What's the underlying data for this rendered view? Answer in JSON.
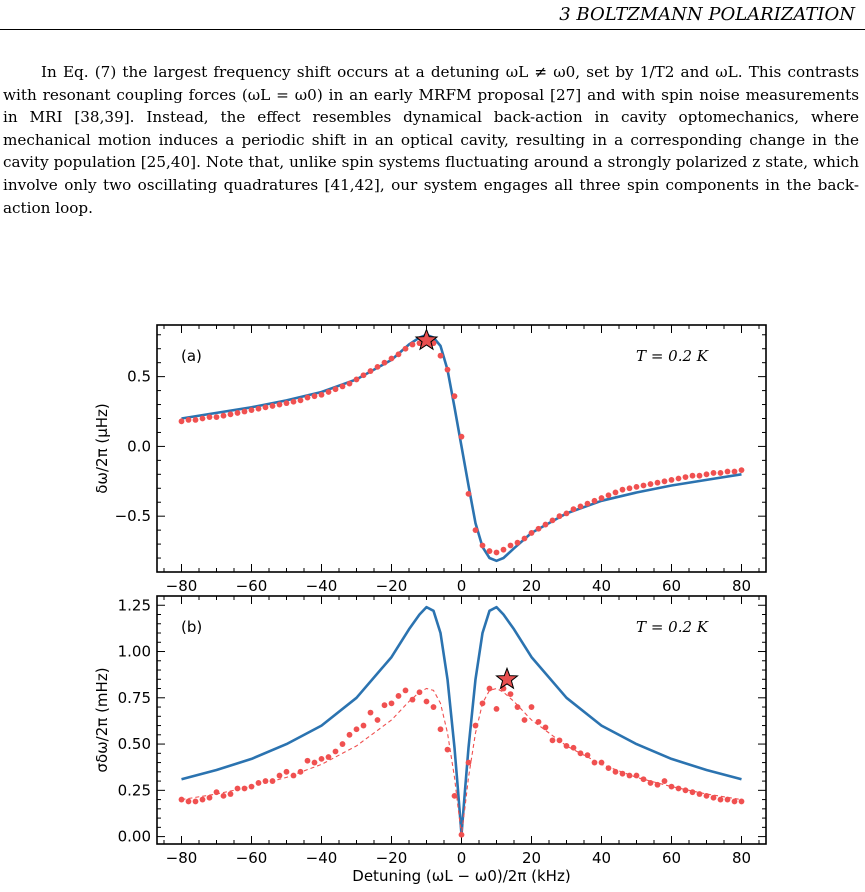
{
  "header": {
    "section": "3  BOLTZMANN POLARIZATION"
  },
  "paragraph": "In Eq. (7) the largest frequency shift occurs at a detuning ωL ≠ ω0, set by 1/T2 and ωL. This contrasts with resonant coupling forces (ωL = ω0) in an early MRFM proposal [27] and with spin noise measurements in MRI [38,39]. Instead, the effect resembles dynamical back-action in cavity optomechanics, where mechanical motion induces a periodic shift in an optical cavity, resulting in a corresponding change in the cavity population [25,40]. Note that, unlike spin systems fluctuating around a strongly polarized z state, which involve only two oscillating quadratures [41,42], our system engages all three spin components in the back-action loop.",
  "colors": {
    "theory": "#2b73b0",
    "data": "#f05050",
    "star": "#e85050"
  },
  "chart_data": [
    {
      "type": "scatter",
      "panel_label": "(a)",
      "annotation": "T = 0.2 K",
      "ylabel": "δω/2π (μHz)",
      "xlim": [
        -87,
        87
      ],
      "ylim": [
        -0.9,
        0.87
      ],
      "xticks": [
        -80,
        -60,
        -40,
        -20,
        0,
        20,
        40,
        60,
        80
      ],
      "yticks": [
        -0.5,
        0.0,
        0.5
      ],
      "ytick_labels": [
        "−0.5",
        "0.0",
        "0.5"
      ],
      "series": [
        {
          "kind": "line",
          "x": [
            -80,
            -70,
            -60,
            -50,
            -40,
            -30,
            -20,
            -15,
            -12,
            -10,
            -8,
            -6,
            -4,
            -2,
            0,
            2,
            4,
            6,
            8,
            10,
            12,
            15,
            20,
            30,
            40,
            50,
            60,
            70,
            80
          ],
          "y": [
            0.2,
            0.24,
            0.28,
            0.33,
            0.39,
            0.48,
            0.62,
            0.73,
            0.78,
            0.8,
            0.78,
            0.72,
            0.55,
            0.28,
            0.0,
            -0.28,
            -0.55,
            -0.72,
            -0.8,
            -0.82,
            -0.8,
            -0.73,
            -0.62,
            -0.48,
            -0.39,
            -0.33,
            -0.28,
            -0.24,
            -0.2
          ]
        },
        {
          "kind": "points",
          "x": [
            -80,
            -78,
            -76,
            -74,
            -72,
            -70,
            -68,
            -66,
            -64,
            -62,
            -60,
            -58,
            -56,
            -54,
            -52,
            -50,
            -48,
            -46,
            -44,
            -42,
            -40,
            -38,
            -36,
            -34,
            -32,
            -30,
            -28,
            -26,
            -24,
            -22,
            -20,
            -18,
            -16,
            -14,
            -12,
            -10,
            -8,
            -6,
            -4,
            -2,
            0,
            2,
            4,
            6,
            8,
            10,
            12,
            14,
            16,
            18,
            20,
            22,
            24,
            26,
            28,
            30,
            32,
            34,
            36,
            38,
            40,
            42,
            44,
            46,
            48,
            50,
            52,
            54,
            56,
            58,
            60,
            62,
            64,
            66,
            68,
            70,
            72,
            74,
            76,
            78,
            80
          ],
          "y": [
            0.18,
            0.19,
            0.19,
            0.2,
            0.21,
            0.21,
            0.22,
            0.23,
            0.24,
            0.25,
            0.26,
            0.27,
            0.28,
            0.29,
            0.3,
            0.31,
            0.32,
            0.33,
            0.35,
            0.36,
            0.37,
            0.39,
            0.41,
            0.43,
            0.45,
            0.48,
            0.51,
            0.54,
            0.57,
            0.6,
            0.63,
            0.66,
            0.7,
            0.73,
            0.74,
            0.76,
            0.74,
            0.65,
            0.55,
            0.36,
            0.07,
            -0.34,
            -0.6,
            -0.71,
            -0.75,
            -0.76,
            -0.74,
            -0.71,
            -0.69,
            -0.66,
            -0.62,
            -0.59,
            -0.56,
            -0.53,
            -0.5,
            -0.48,
            -0.45,
            -0.43,
            -0.41,
            -0.39,
            -0.37,
            -0.35,
            -0.33,
            -0.31,
            -0.3,
            -0.29,
            -0.28,
            -0.27,
            -0.26,
            -0.25,
            -0.24,
            -0.23,
            -0.22,
            -0.21,
            -0.21,
            -0.2,
            -0.19,
            -0.19,
            -0.18,
            -0.18,
            -0.17
          ]
        },
        {
          "kind": "star",
          "x": -10,
          "y": 0.76
        }
      ]
    },
    {
      "type": "scatter",
      "panel_label": "(b)",
      "annotation": "T = 0.2 K",
      "xlabel": "Detuning (ωL − ω0)/2π (kHz)",
      "ylabel": "σδω/2π (mHz)",
      "xlim": [
        -87,
        87
      ],
      "ylim": [
        -0.04,
        1.3
      ],
      "xticks": [
        -80,
        -60,
        -40,
        -20,
        0,
        20,
        40,
        60,
        80
      ],
      "yticks": [
        0.0,
        0.25,
        0.5,
        0.75,
        1.0,
        1.25
      ],
      "ytick_labels": [
        "0.00",
        "0.25",
        "0.50",
        "0.75",
        "1.00",
        "1.25"
      ],
      "series": [
        {
          "kind": "line",
          "x": [
            -80,
            -70,
            -60,
            -50,
            -40,
            -30,
            -20,
            -15,
            -12,
            -10,
            -8,
            -6,
            -4,
            -2,
            -1,
            0,
            1,
            2,
            4,
            6,
            8,
            10,
            12,
            15,
            20,
            30,
            40,
            50,
            60,
            70,
            80
          ],
          "y": [
            0.31,
            0.36,
            0.42,
            0.5,
            0.6,
            0.75,
            0.97,
            1.12,
            1.2,
            1.24,
            1.22,
            1.1,
            0.85,
            0.48,
            0.25,
            0.01,
            0.25,
            0.48,
            0.85,
            1.1,
            1.22,
            1.24,
            1.2,
            1.12,
            0.97,
            0.75,
            0.6,
            0.5,
            0.42,
            0.36,
            0.31
          ]
        },
        {
          "kind": "dashed",
          "x": [
            -80,
            -70,
            -60,
            -50,
            -40,
            -30,
            -20,
            -15,
            -12,
            -10,
            -8,
            -6,
            -4,
            -2,
            -1,
            0,
            1,
            2,
            4,
            6,
            8,
            10,
            12,
            15,
            20,
            30,
            40,
            50,
            60,
            70,
            80
          ],
          "y": [
            0.2,
            0.23,
            0.27,
            0.32,
            0.39,
            0.49,
            0.63,
            0.73,
            0.78,
            0.8,
            0.79,
            0.72,
            0.56,
            0.32,
            0.16,
            0.01,
            0.16,
            0.32,
            0.56,
            0.72,
            0.79,
            0.8,
            0.78,
            0.73,
            0.63,
            0.49,
            0.39,
            0.32,
            0.27,
            0.23,
            0.2
          ]
        },
        {
          "kind": "points",
          "x": [
            -80,
            -78,
            -76,
            -74,
            -72,
            -70,
            -68,
            -66,
            -64,
            -62,
            -60,
            -58,
            -56,
            -54,
            -52,
            -50,
            -48,
            -46,
            -44,
            -42,
            -40,
            -38,
            -36,
            -34,
            -32,
            -30,
            -28,
            -26,
            -24,
            -22,
            -20,
            -18,
            -16,
            -14,
            -12,
            -10,
            -8,
            -6,
            -4,
            -2,
            0,
            2,
            4,
            6,
            8,
            10,
            12,
            14,
            16,
            18,
            20,
            22,
            24,
            26,
            28,
            30,
            32,
            34,
            36,
            38,
            40,
            42,
            44,
            46,
            48,
            50,
            52,
            54,
            56,
            58,
            60,
            62,
            64,
            66,
            68,
            70,
            72,
            74,
            76,
            78,
            80
          ],
          "y": [
            0.2,
            0.19,
            0.19,
            0.2,
            0.21,
            0.24,
            0.22,
            0.23,
            0.26,
            0.26,
            0.27,
            0.29,
            0.3,
            0.3,
            0.33,
            0.35,
            0.33,
            0.35,
            0.41,
            0.4,
            0.42,
            0.43,
            0.46,
            0.5,
            0.55,
            0.58,
            0.6,
            0.67,
            0.63,
            0.71,
            0.72,
            0.76,
            0.79,
            0.74,
            0.78,
            0.73,
            0.7,
            0.58,
            0.47,
            0.22,
            0.01,
            0.4,
            0.6,
            0.72,
            0.8,
            0.69,
            0.8,
            0.77,
            0.7,
            0.63,
            0.7,
            0.62,
            0.59,
            0.52,
            0.52,
            0.49,
            0.48,
            0.45,
            0.44,
            0.4,
            0.4,
            0.37,
            0.35,
            0.34,
            0.33,
            0.33,
            0.31,
            0.29,
            0.28,
            0.3,
            0.27,
            0.26,
            0.25,
            0.24,
            0.23,
            0.22,
            0.21,
            0.2,
            0.2,
            0.19,
            0.19
          ]
        },
        {
          "kind": "star",
          "x": 13,
          "y": 0.85
        }
      ]
    }
  ]
}
